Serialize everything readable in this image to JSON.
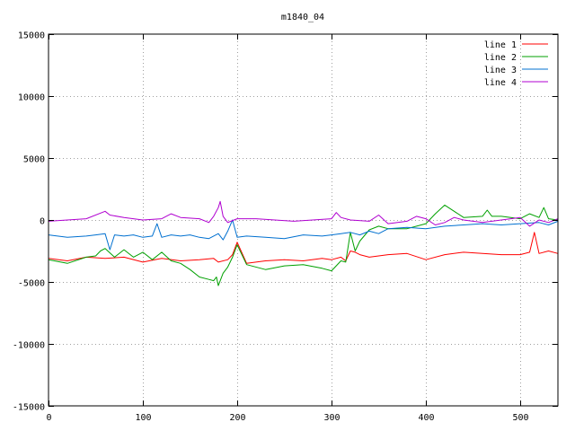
{
  "chart_data": {
    "type": "line",
    "title": "m1840_04",
    "xlabel": "",
    "ylabel": "",
    "xlim": [
      0,
      540
    ],
    "ylim": [
      -15000,
      15000
    ],
    "x_ticks": [
      0,
      100,
      200,
      300,
      400,
      500
    ],
    "y_ticks": [
      -15000,
      -10000,
      -5000,
      0,
      5000,
      10000,
      15000
    ],
    "grid": true,
    "legend_position": "top-right",
    "series": [
      {
        "name": "line 1",
        "color": "#ff0000",
        "x": [
          0,
          20,
          40,
          60,
          80,
          100,
          120,
          140,
          160,
          175,
          180,
          190,
          195,
          200,
          210,
          230,
          250,
          270,
          290,
          300,
          310,
          315,
          320,
          325,
          330,
          340,
          360,
          380,
          400,
          420,
          440,
          460,
          480,
          500,
          510,
          515,
          520,
          530,
          540
        ],
        "y": [
          -3100,
          -3300,
          -3000,
          -3100,
          -3000,
          -3400,
          -3100,
          -3300,
          -3200,
          -3100,
          -3400,
          -3200,
          -2800,
          -1800,
          -3500,
          -3300,
          -3200,
          -3300,
          -3100,
          -3200,
          -3000,
          -3300,
          -2500,
          -2600,
          -2800,
          -3000,
          -2800,
          -2700,
          -3200,
          -2800,
          -2600,
          -2700,
          -2800,
          -2800,
          -2600,
          -1000,
          -2700,
          -2500,
          -2700
        ]
      },
      {
        "name": "line 2",
        "color": "#00a000",
        "x": [
          0,
          20,
          40,
          50,
          55,
          60,
          70,
          80,
          90,
          100,
          110,
          120,
          130,
          140,
          150,
          160,
          170,
          175,
          178,
          180,
          185,
          190,
          195,
          200,
          210,
          230,
          250,
          270,
          290,
          300,
          310,
          315,
          320,
          325,
          330,
          340,
          350,
          360,
          380,
          400,
          410,
          420,
          430,
          440,
          460,
          465,
          470,
          480,
          500,
          510,
          520,
          525,
          530,
          540
        ],
        "y": [
          -3200,
          -3500,
          -3000,
          -2900,
          -2500,
          -2300,
          -3000,
          -2400,
          -3000,
          -2600,
          -3200,
          -2600,
          -3300,
          -3500,
          -4000,
          -4600,
          -4800,
          -4900,
          -4600,
          -5300,
          -4300,
          -3800,
          -3000,
          -2000,
          -3600,
          -4000,
          -3700,
          -3600,
          -3900,
          -4100,
          -3300,
          -3400,
          -1000,
          -2500,
          -1700,
          -800,
          -500,
          -700,
          -700,
          -300,
          500,
          1200,
          700,
          200,
          300,
          800,
          300,
          300,
          100,
          500,
          200,
          1000,
          100,
          0
        ]
      },
      {
        "name": "line 3",
        "color": "#0070d0",
        "x": [
          0,
          20,
          40,
          50,
          60,
          65,
          70,
          80,
          90,
          100,
          110,
          115,
          120,
          130,
          140,
          150,
          160,
          170,
          180,
          185,
          190,
          195,
          200,
          210,
          230,
          250,
          270,
          290,
          300,
          310,
          320,
          330,
          340,
          350,
          360,
          380,
          400,
          420,
          440,
          460,
          480,
          500,
          520,
          530,
          540
        ],
        "y": [
          -1200,
          -1400,
          -1300,
          -1200,
          -1100,
          -2400,
          -1200,
          -1300,
          -1200,
          -1400,
          -1300,
          -300,
          -1400,
          -1200,
          -1300,
          -1200,
          -1400,
          -1500,
          -1100,
          -1600,
          -900,
          0,
          -1400,
          -1300,
          -1400,
          -1500,
          -1200,
          -1300,
          -1200,
          -1100,
          -1000,
          -1200,
          -900,
          -1100,
          -700,
          -600,
          -700,
          -500,
          -400,
          -300,
          -400,
          -300,
          -200,
          -400,
          -100
        ]
      },
      {
        "name": "line 4",
        "color": "#b000d0",
        "x": [
          0,
          20,
          40,
          60,
          65,
          80,
          100,
          120,
          130,
          140,
          160,
          170,
          175,
          180,
          182,
          185,
          190,
          200,
          220,
          240,
          260,
          280,
          300,
          305,
          310,
          320,
          340,
          350,
          360,
          380,
          390,
          400,
          410,
          420,
          430,
          440,
          460,
          480,
          500,
          510,
          520,
          530,
          540
        ],
        "y": [
          -100,
          0,
          100,
          700,
          400,
          200,
          0,
          100,
          500,
          200,
          100,
          -200,
          300,
          1000,
          1500,
          300,
          -200,
          100,
          100,
          0,
          -100,
          0,
          100,
          600,
          200,
          0,
          -100,
          400,
          -300,
          -100,
          300,
          100,
          -400,
          -200,
          200,
          0,
          -200,
          0,
          200,
          -500,
          0,
          -200,
          100
        ]
      }
    ]
  }
}
